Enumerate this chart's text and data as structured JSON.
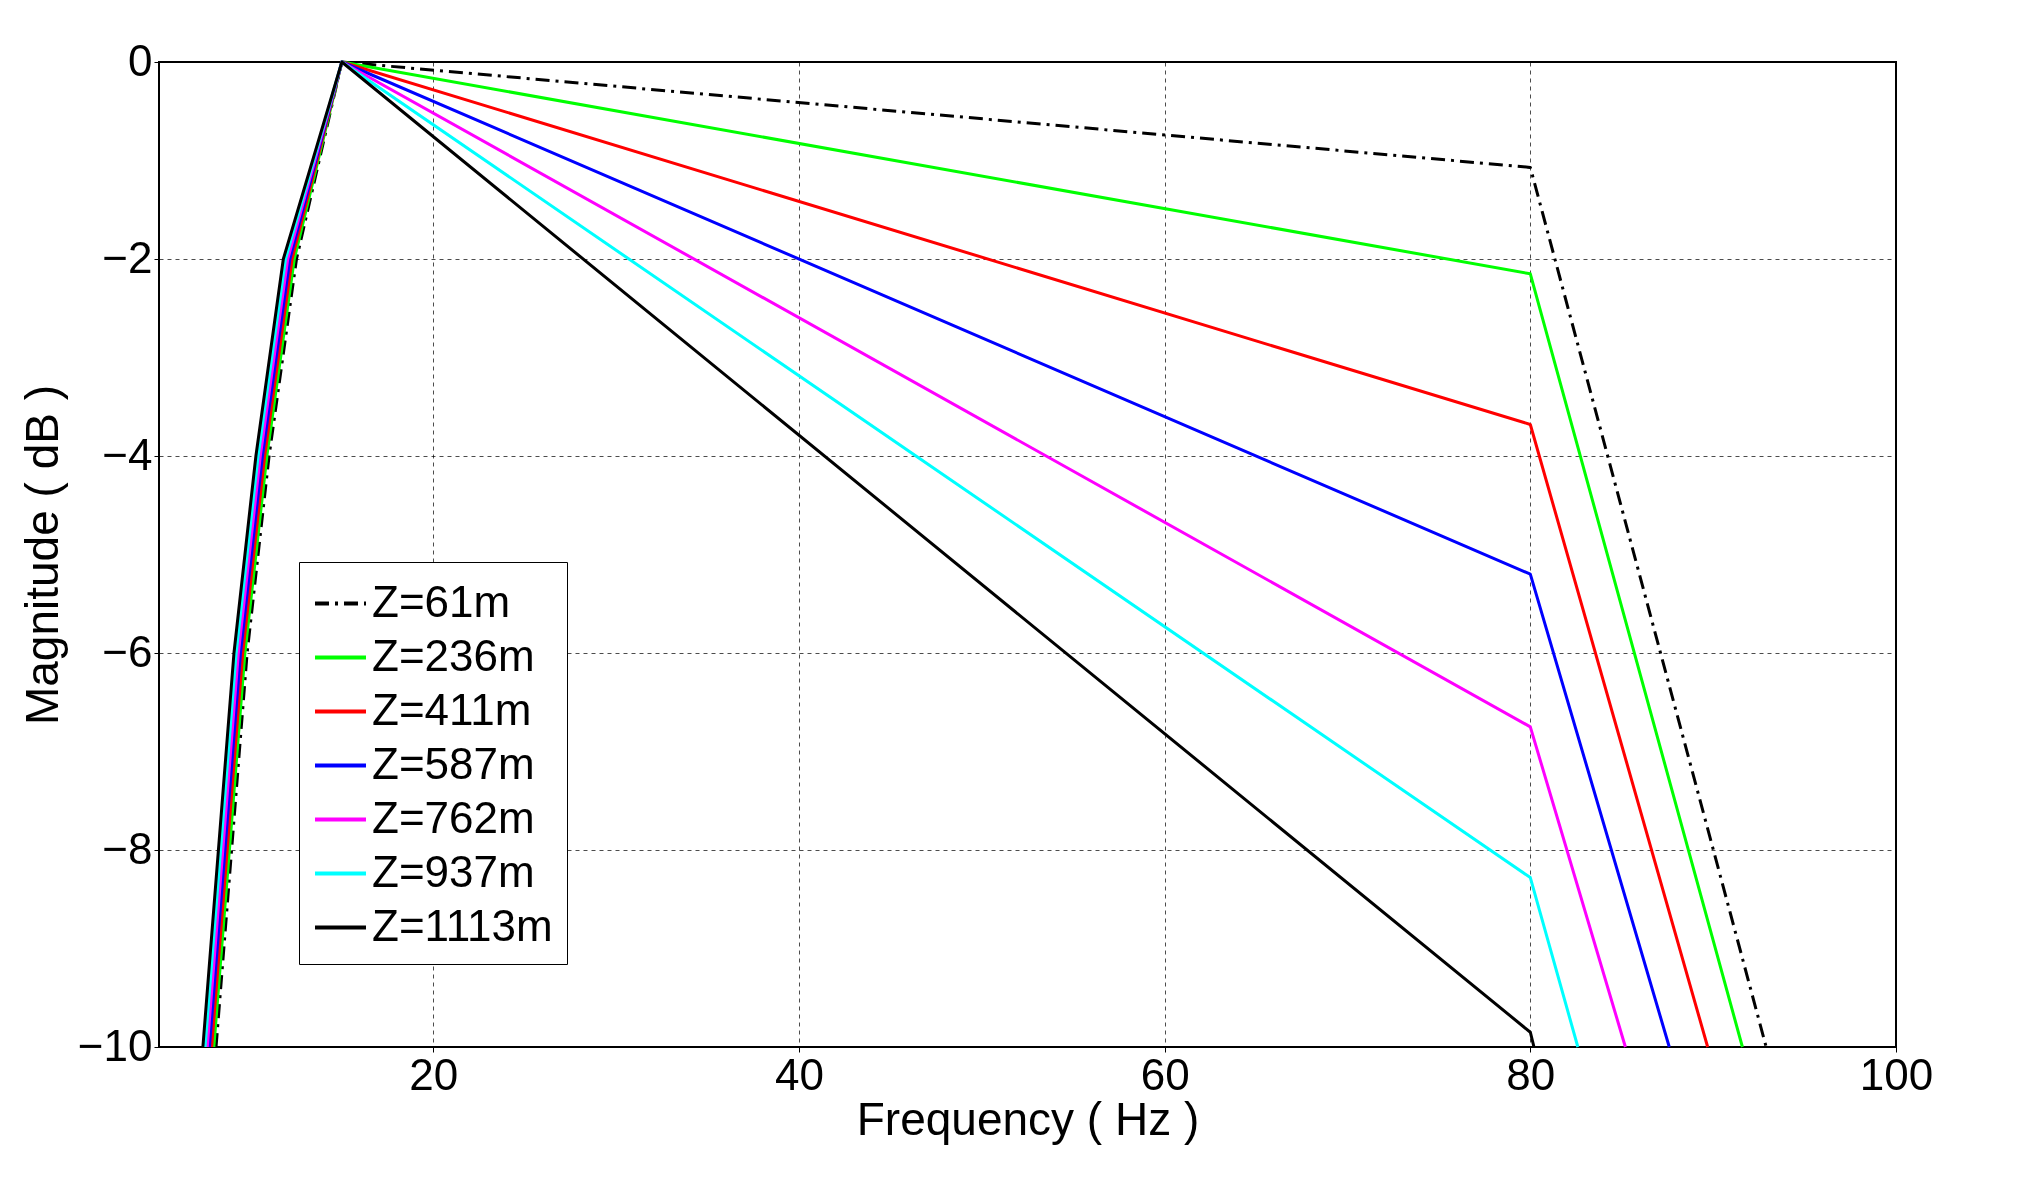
{
  "chart_data": {
    "type": "line",
    "xlabel": "Frequency ( Hz )",
    "ylabel": "Magnitude ( dB )",
    "xlim": [
      5,
      100
    ],
    "xticks": [
      20,
      40,
      60,
      80,
      100
    ],
    "ylim": [
      -10,
      0
    ],
    "yticks": [
      -10,
      -8,
      -6,
      -4,
      -2,
      0
    ],
    "grid": true,
    "legend": "bottom left",
    "series": [
      {
        "name": "Z=61m",
        "color": "#000000",
        "line_style": "dashdot",
        "x": [
          8.12,
          9.82,
          11.02,
          12.52,
          15,
          80,
          92.9
        ],
        "values": [
          -10,
          -6,
          -4,
          -2,
          0,
          -1.07,
          -10
        ]
      },
      {
        "name": "Z=236m",
        "color": "#00ff00",
        "line_style": "solid",
        "x": [
          8.0,
          9.7,
          10.9,
          12.4,
          15,
          80,
          91.6
        ],
        "values": [
          -10,
          -6,
          -4,
          -2,
          0,
          -2.15,
          -10
        ]
      },
      {
        "name": "Z=411m",
        "color": "#ff0000",
        "line_style": "solid",
        "x": [
          7.88,
          9.58,
          10.78,
          12.28,
          15,
          80,
          89.7
        ],
        "values": [
          -10,
          -6,
          -4,
          -2,
          0,
          -3.68,
          -10
        ]
      },
      {
        "name": "Z=587m",
        "color": "#0000ff",
        "line_style": "solid",
        "x": [
          7.76,
          9.46,
          10.66,
          12.16,
          15,
          80,
          87.6
        ],
        "values": [
          -10,
          -6,
          -4,
          -2,
          0,
          -5.2,
          -10
        ]
      },
      {
        "name": "Z=762m",
        "color": "#ff00ff",
        "line_style": "solid",
        "x": [
          7.64,
          9.34,
          10.54,
          12.04,
          15,
          80,
          85.2
        ],
        "values": [
          -10,
          -6,
          -4,
          -2,
          0,
          -6.75,
          -10
        ]
      },
      {
        "name": "Z=937m",
        "color": "#00ffff",
        "line_style": "solid",
        "x": [
          7.52,
          9.22,
          10.42,
          11.92,
          15,
          80,
          82.6
        ],
        "values": [
          -10,
          -6,
          -4,
          -2,
          0,
          -8.28,
          -10
        ]
      },
      {
        "name": "Z=1113m",
        "color": "#000000",
        "line_style": "solid",
        "x": [
          7.4,
          9.1,
          10.3,
          11.8,
          15,
          80,
          80.2
        ],
        "values": [
          -10,
          -6,
          -4,
          -2,
          0,
          -9.85,
          -10
        ]
      }
    ]
  }
}
